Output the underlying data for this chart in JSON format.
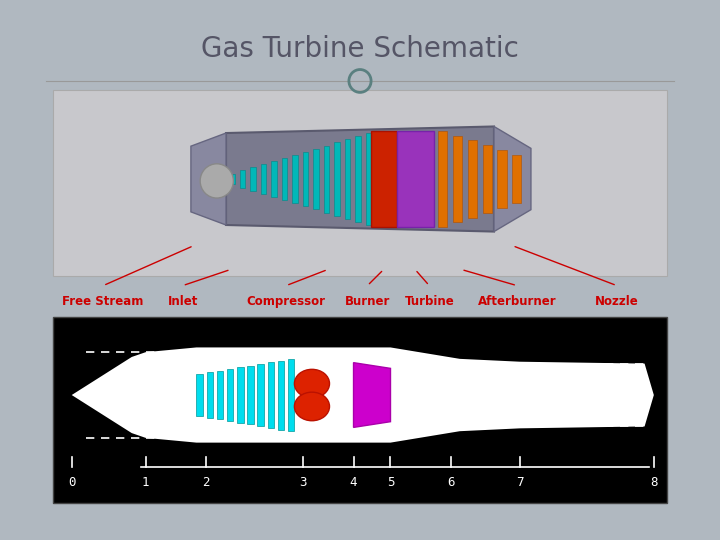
{
  "title": "Gas Turbine Schematic",
  "title_color": "#555566",
  "title_fontsize": 20,
  "bg_color": "#b0b8c0",
  "panel_bg": "#ffffff",
  "diagram_bg": "#000000",
  "labels": [
    "Free Stream",
    "Inlet",
    "Compressor",
    "Burner",
    "Turbine",
    "Afterburner",
    "Nozzle"
  ],
  "label_color": "#cc0000",
  "label_fontsize": 8.5,
  "axis_numbers": [
    "0",
    "1",
    "2",
    "3",
    "4",
    "5",
    "6",
    "7",
    "8"
  ],
  "axis_color": "#ffffff",
  "upper_bg": "#c8c8cc",
  "separator_color": "#999999",
  "circle_color": "#5a8080"
}
